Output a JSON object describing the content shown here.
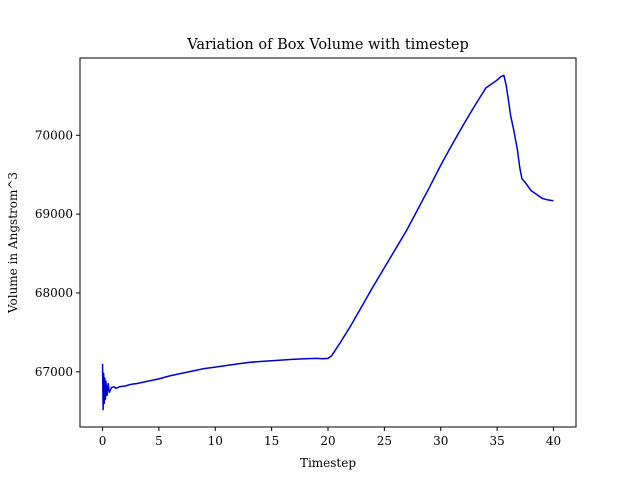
{
  "chart_data": {
    "type": "line",
    "title": "Variation of Box Volume with timestep",
    "xlabel": "Timestep",
    "ylabel": "Volume in Angstrom^3",
    "xlim": [
      -2,
      42
    ],
    "ylim": [
      66300,
      70980
    ],
    "xticks": [
      0,
      5,
      10,
      15,
      20,
      25,
      30,
      35,
      40
    ],
    "yticks": [
      67000,
      68000,
      69000,
      70000
    ],
    "grid": false,
    "legend": "none",
    "series": [
      {
        "color": "#0000cc",
        "x": [
          0,
          0.05,
          0.1,
          0.15,
          0.2,
          0.25,
          0.3,
          0.4,
          0.5,
          0.6,
          0.8,
          1.0,
          1.2,
          1.5,
          2,
          2.5,
          3,
          4,
          5,
          6,
          7,
          8,
          9,
          10,
          11,
          12,
          13,
          14,
          15,
          16,
          17,
          18,
          19,
          19.5,
          20,
          20.3,
          21,
          22,
          23,
          24,
          25,
          26,
          27,
          28,
          29,
          30,
          31,
          32,
          33,
          34,
          35,
          35.3,
          35.6,
          35.8,
          36.0,
          36.2,
          36.5,
          36.8,
          37.0,
          37.2,
          37.5,
          38,
          38.5,
          39,
          39.5,
          40
        ],
        "y": [
          67100,
          66520,
          66980,
          66600,
          66920,
          66650,
          66880,
          66700,
          66850,
          66740,
          66800,
          66810,
          66790,
          66810,
          66820,
          66840,
          66850,
          66880,
          66910,
          66950,
          66980,
          67010,
          67040,
          67060,
          67080,
          67100,
          67120,
          67130,
          67140,
          67150,
          67160,
          67165,
          67170,
          67165,
          67170,
          67200,
          67350,
          67580,
          67830,
          68080,
          68320,
          68560,
          68800,
          69070,
          69340,
          69620,
          69880,
          70130,
          70370,
          70600,
          70700,
          70740,
          70760,
          70640,
          70450,
          70250,
          70050,
          69820,
          69600,
          69450,
          69400,
          69300,
          69250,
          69200,
          69180,
          69170
        ]
      }
    ]
  }
}
